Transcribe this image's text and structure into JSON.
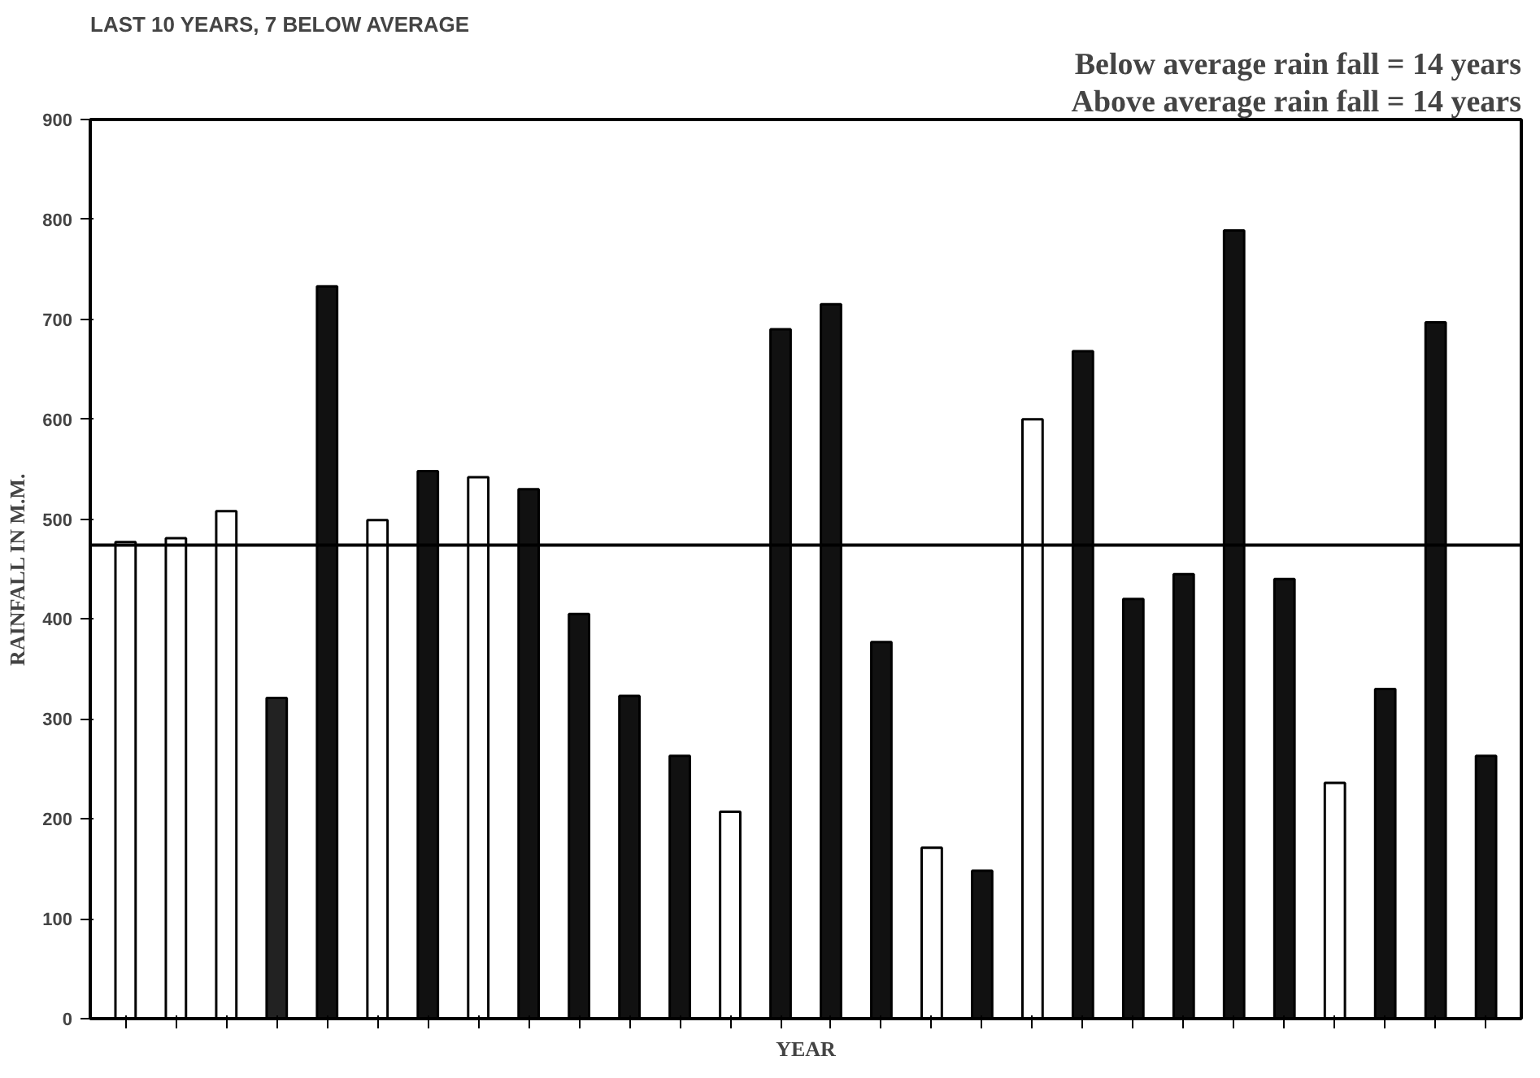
{
  "chart_data": {
    "type": "bar",
    "title": "LAST 10 YEARS, 7 BELOW AVERAGE",
    "xlabel": "YEAR",
    "ylabel": "RAINFALL IN M.M.",
    "annotations": [
      "Below average rain fall = 14 years",
      "Above average rain fall = 14 years"
    ],
    "categories": [
      null,
      null,
      null,
      null,
      null,
      null,
      null,
      null,
      null,
      null,
      null,
      null,
      null,
      null,
      null,
      null,
      null,
      null,
      null,
      null,
      null,
      null,
      null,
      null,
      null,
      null,
      null,
      null
    ],
    "values": [
      477,
      481,
      508,
      321,
      733,
      499,
      548,
      542,
      530,
      405,
      323,
      263,
      207,
      690,
      715,
      377,
      171,
      148,
      600,
      668,
      420,
      445,
      789,
      440,
      236,
      330,
      697,
      263
    ],
    "colors": [
      "#ffffff",
      "#ffffff",
      "#ffffff",
      "#222222",
      "#111111",
      "#ffffff",
      "#111111",
      "#ffffff",
      "#111111",
      "#111111",
      "#111111",
      "#111111",
      "#ffffff",
      "#111111",
      "#111111",
      "#111111",
      "#ffffff",
      "#111111",
      "#ffffff",
      "#111111",
      "#111111",
      "#111111",
      "#111111",
      "#111111",
      "#ffffff",
      "#111111",
      "#111111",
      "#111111"
    ],
    "ylim": [
      0,
      900
    ],
    "yticks": [
      0,
      100,
      200,
      300,
      400,
      500,
      600,
      700,
      800,
      900
    ],
    "ref_lines": [
      {
        "axis": "y",
        "value": 474,
        "color": "#000000"
      }
    ],
    "grid": false
  }
}
